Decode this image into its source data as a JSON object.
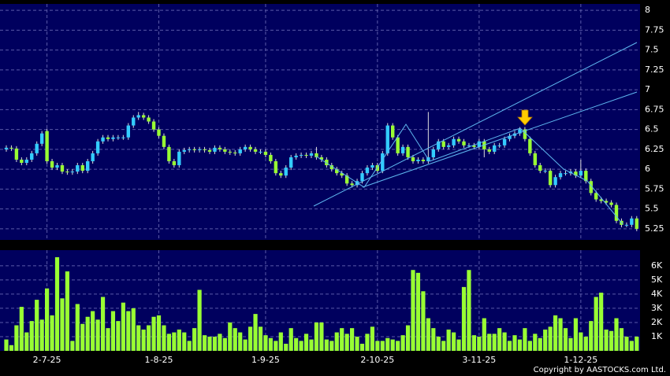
{
  "chart_data": [
    {
      "type": "candlestick",
      "up_color": "#33ccff",
      "down_color": "#99ff33",
      "wick_color": "#dddddd",
      "grid": true,
      "ylim": [
        5.11,
        8.08
      ],
      "yticks": [
        5.25,
        5.5,
        5.75,
        6,
        6.25,
        6.5,
        6.75,
        7,
        7.25,
        7.5,
        7.75,
        8
      ],
      "open": [
        6.25,
        6.27,
        6.26,
        6.12,
        6.08,
        6.12,
        6.2,
        6.32,
        6.48,
        6.1,
        6.02,
        6.05,
        5.97,
        5.96,
        5.97,
        6.05,
        5.98,
        6.1,
        6.2,
        6.35,
        6.4,
        6.38,
        6.4,
        6.4,
        6.4,
        6.55,
        6.65,
        6.68,
        6.65,
        6.6,
        6.5,
        6.42,
        6.28,
        6.1,
        6.05,
        6.22,
        6.24,
        6.25,
        6.24,
        6.25,
        6.24,
        6.22,
        6.27,
        6.25,
        6.22,
        6.21,
        6.2,
        6.25,
        6.28,
        6.25,
        6.22,
        6.22,
        6.18,
        6.1,
        5.95,
        5.92,
        6.02,
        6.15,
        6.17,
        6.18,
        6.17,
        6.2,
        6.15,
        6.12,
        6.05,
        6.0,
        5.95,
        5.92,
        5.82,
        5.8,
        5.85,
        5.95,
        6.02,
        6.05,
        5.98,
        6.2,
        6.55,
        6.4,
        6.2,
        6.28,
        6.15,
        6.1,
        6.12,
        6.1,
        6.15,
        6.25,
        6.35,
        6.28,
        6.3,
        6.38,
        6.35,
        6.3,
        6.3,
        6.28,
        6.35,
        6.25,
        6.22,
        6.3,
        6.3,
        6.38,
        6.42,
        6.45,
        6.5,
        6.38,
        6.2,
        6.05,
        5.98,
        5.98,
        5.8,
        5.9,
        5.95,
        5.95,
        5.97,
        5.92,
        5.98,
        5.85,
        5.7,
        5.62,
        5.6,
        5.58,
        5.55,
        5.35,
        5.3,
        5.3,
        5.38
      ],
      "high": [
        6.3,
        6.3,
        6.29,
        6.15,
        6.15,
        6.23,
        6.35,
        6.48,
        6.51,
        6.13,
        6.08,
        6.08,
        6.0,
        6.0,
        6.08,
        6.08,
        6.13,
        6.23,
        6.38,
        6.43,
        6.43,
        6.43,
        6.43,
        6.43,
        6.58,
        6.68,
        6.72,
        6.71,
        6.68,
        6.63,
        6.53,
        6.45,
        6.31,
        6.13,
        6.25,
        6.27,
        6.28,
        6.28,
        6.28,
        6.28,
        6.27,
        6.3,
        6.3,
        6.28,
        6.25,
        6.24,
        6.28,
        6.31,
        6.31,
        6.28,
        6.25,
        6.25,
        6.21,
        6.13,
        5.98,
        6.05,
        6.18,
        6.2,
        6.21,
        6.21,
        6.23,
        6.28,
        6.18,
        6.15,
        6.08,
        6.03,
        5.98,
        5.95,
        5.85,
        5.88,
        5.98,
        6.05,
        6.08,
        6.08,
        6.23,
        6.58,
        6.58,
        6.43,
        6.31,
        6.31,
        6.18,
        6.15,
        6.15,
        6.72,
        6.28,
        6.38,
        6.38,
        6.33,
        6.41,
        6.41,
        6.38,
        6.33,
        6.33,
        6.38,
        6.38,
        6.28,
        6.33,
        6.33,
        6.41,
        6.45,
        6.48,
        6.53,
        6.53,
        6.41,
        6.23,
        6.08,
        6.01,
        6.01,
        5.93,
        5.98,
        5.98,
        6.0,
        6.0,
        6.12,
        6.01,
        5.88,
        5.73,
        5.65,
        5.63,
        5.61,
        5.58,
        5.38,
        5.33,
        5.41,
        5.41
      ],
      "low": [
        6.22,
        6.23,
        6.09,
        6.05,
        6.05,
        6.09,
        6.17,
        6.29,
        6.07,
        5.99,
        5.99,
        5.94,
        5.93,
        5.93,
        5.94,
        5.95,
        5.95,
        6.07,
        6.17,
        6.32,
        6.35,
        6.35,
        6.37,
        6.37,
        6.37,
        6.52,
        6.62,
        6.62,
        6.57,
        6.47,
        6.39,
        6.25,
        6.07,
        6.02,
        6.02,
        6.19,
        6.21,
        6.21,
        6.21,
        6.21,
        6.19,
        6.19,
        6.22,
        6.19,
        6.18,
        6.17,
        6.17,
        6.22,
        6.22,
        6.19,
        6.19,
        6.15,
        6.07,
        5.92,
        5.89,
        5.89,
        5.99,
        6.12,
        6.14,
        6.14,
        6.14,
        6.12,
        6.09,
        6.02,
        5.97,
        5.92,
        5.89,
        5.79,
        5.77,
        5.77,
        5.82,
        5.92,
        5.99,
        5.95,
        5.95,
        6.17,
        6.37,
        6.17,
        6.17,
        6.12,
        6.07,
        6.07,
        6.07,
        6.07,
        6.12,
        6.22,
        6.25,
        6.25,
        6.27,
        6.32,
        6.27,
        6.27,
        6.25,
        6.25,
        6.15,
        6.19,
        6.19,
        6.27,
        6.27,
        6.35,
        6.39,
        6.42,
        6.35,
        6.17,
        6.02,
        5.95,
        5.95,
        5.77,
        5.77,
        5.87,
        5.92,
        5.92,
        5.89,
        5.89,
        5.82,
        5.67,
        5.59,
        5.57,
        5.55,
        5.52,
        5.32,
        5.27,
        5.27,
        5.27,
        5.22
      ],
      "close": [
        6.27,
        6.26,
        6.12,
        6.08,
        6.12,
        6.2,
        6.32,
        6.45,
        6.1,
        6.02,
        6.05,
        5.97,
        5.96,
        5.97,
        6.05,
        5.98,
        6.1,
        6.2,
        6.35,
        6.4,
        6.38,
        6.4,
        6.4,
        6.4,
        6.55,
        6.65,
        6.68,
        6.65,
        6.6,
        6.5,
        6.42,
        6.28,
        6.1,
        6.05,
        6.22,
        6.24,
        6.25,
        6.24,
        6.25,
        6.24,
        6.22,
        6.27,
        6.25,
        6.22,
        6.21,
        6.2,
        6.25,
        6.28,
        6.25,
        6.22,
        6.22,
        6.18,
        6.1,
        5.95,
        5.92,
        6.02,
        6.15,
        6.17,
        6.18,
        6.17,
        6.2,
        6.15,
        6.12,
        6.05,
        6.0,
        5.95,
        5.92,
        5.82,
        5.8,
        5.85,
        5.95,
        6.02,
        6.05,
        5.98,
        6.2,
        6.55,
        6.4,
        6.2,
        6.28,
        6.15,
        6.1,
        6.12,
        6.1,
        6.15,
        6.25,
        6.35,
        6.28,
        6.3,
        6.38,
        6.35,
        6.3,
        6.3,
        6.28,
        6.35,
        6.25,
        6.22,
        6.3,
        6.3,
        6.38,
        6.42,
        6.45,
        6.5,
        6.38,
        6.2,
        6.05,
        5.98,
        5.98,
        5.8,
        5.9,
        5.95,
        5.95,
        5.97,
        5.92,
        5.98,
        5.85,
        5.7,
        5.62,
        5.6,
        5.58,
        5.55,
        5.35,
        5.3,
        5.3,
        5.38,
        5.25
      ]
    },
    {
      "type": "bar",
      "color": "#99ff33",
      "grid": true,
      "ylim": [
        0,
        7100
      ],
      "yticks": [
        {
          "value": 1000,
          "label": "1K"
        },
        {
          "value": 2000,
          "label": "2K"
        },
        {
          "value": 3000,
          "label": "3K"
        },
        {
          "value": 4000,
          "label": "4K"
        },
        {
          "value": 5000,
          "label": "5K"
        },
        {
          "value": 6000,
          "label": "6K"
        }
      ],
      "categories": [
        null,
        null,
        null,
        null,
        null,
        null,
        null,
        null,
        "2-7-25",
        null,
        null,
        null,
        null,
        null,
        null,
        null,
        null,
        null,
        null,
        null,
        null,
        null,
        null,
        null,
        null,
        null,
        null,
        null,
        null,
        null,
        "1-8-25",
        null,
        null,
        null,
        null,
        null,
        null,
        null,
        null,
        null,
        null,
        null,
        null,
        null,
        null,
        null,
        null,
        null,
        null,
        null,
        null,
        "1-9-25",
        null,
        null,
        null,
        null,
        null,
        null,
        null,
        null,
        null,
        null,
        null,
        null,
        null,
        null,
        null,
        null,
        null,
        null,
        null,
        null,
        null,
        "2-10-25",
        null,
        null,
        null,
        null,
        null,
        null,
        null,
        null,
        null,
        null,
        null,
        null,
        null,
        null,
        null,
        null,
        null,
        null,
        null,
        "3-11-25",
        null,
        null,
        null,
        null,
        null,
        null,
        null,
        null,
        null,
        null,
        null,
        null,
        null,
        null,
        null,
        null,
        null,
        null,
        null,
        "1-12-25",
        null,
        null,
        null,
        null,
        null,
        null,
        null,
        null,
        null,
        null,
        null
      ],
      "values": [
        800,
        400,
        1800,
        3100,
        1300,
        2100,
        3600,
        2200,
        4400,
        2500,
        6600,
        3700,
        5600,
        700,
        3300,
        1900,
        2400,
        2800,
        2200,
        3800,
        1600,
        2800,
        2100,
        3400,
        2800,
        3000,
        1800,
        1500,
        1800,
        2400,
        2500,
        1800,
        1200,
        1300,
        1500,
        1300,
        700,
        1600,
        4300,
        1100,
        1000,
        1000,
        1200,
        900,
        2000,
        1600,
        1300,
        800,
        1700,
        2600,
        1700,
        1100,
        900,
        700,
        1300,
        500,
        1600,
        900,
        700,
        1200,
        800,
        2000,
        2000,
        800,
        700,
        1300,
        1600,
        1200,
        1600,
        1000,
        500,
        1200,
        1700,
        700,
        700,
        900,
        800,
        700,
        1100,
        1800,
        5700,
        5500,
        4200,
        2300,
        1600,
        1000,
        700,
        1500,
        1300,
        800,
        4500,
        5700,
        1100,
        1000,
        2300,
        1200,
        1200,
        1600,
        1300,
        700,
        1100,
        800,
        1600,
        700,
        1200,
        900,
        1500,
        1700,
        2500,
        2300,
        1600,
        900,
        2300,
        1300,
        1000,
        2100,
        3800,
        4100,
        1500,
        1400,
        2300,
        1600,
        1000,
        700,
        1000
      ]
    }
  ],
  "copyright": "Copyright by AASTOCKS.com Ltd."
}
